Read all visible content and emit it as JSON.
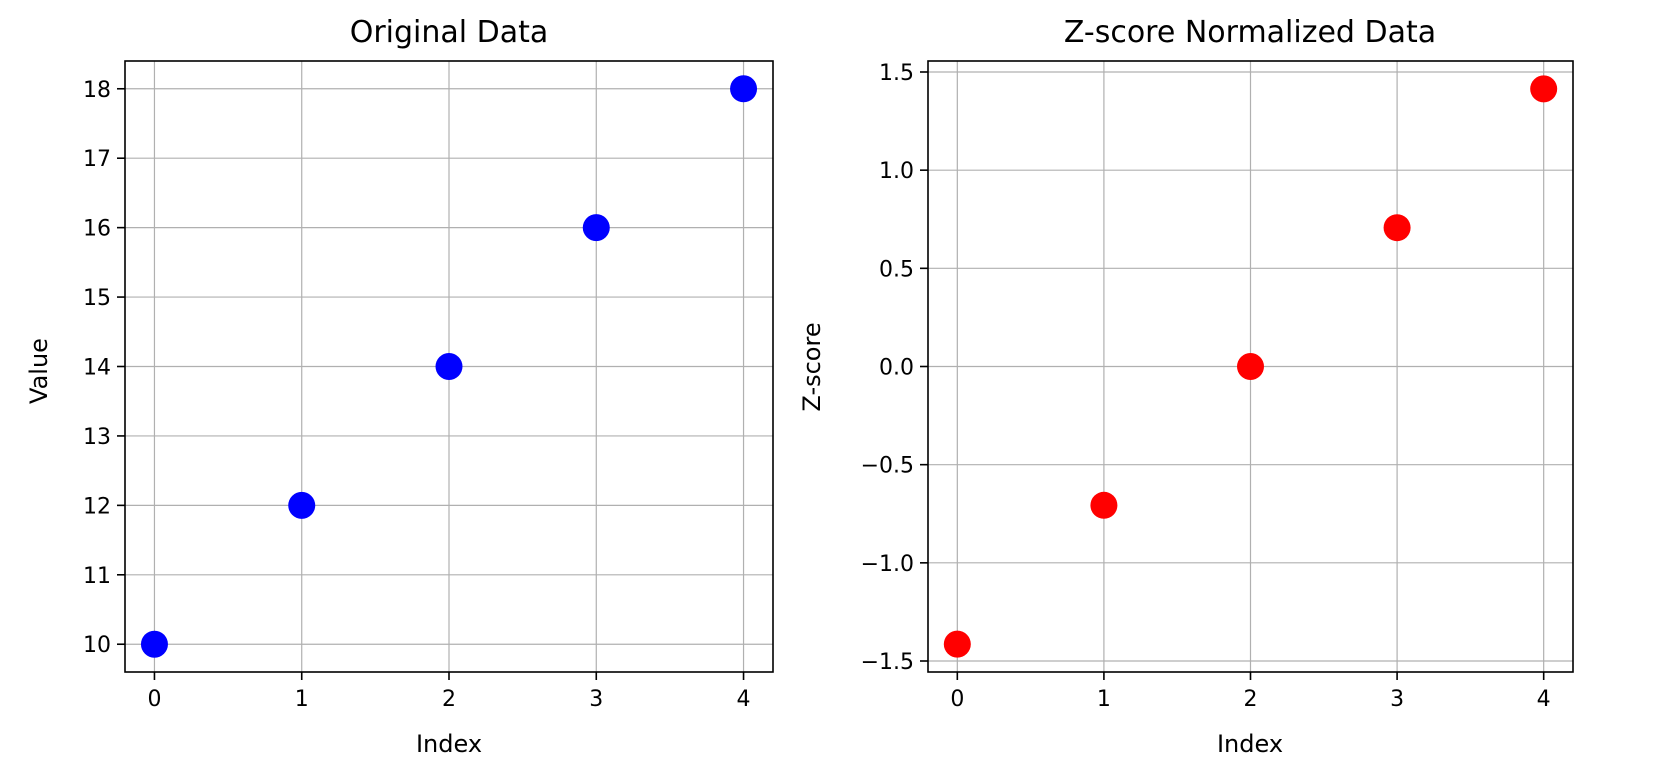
{
  "chart_data": [
    {
      "type": "scatter",
      "title": "Original Data",
      "xlabel": "Index",
      "ylabel": "Value",
      "x": [
        0,
        1,
        2,
        3,
        4
      ],
      "y": [
        10,
        12,
        14,
        16,
        18
      ],
      "xlim": [
        -0.2,
        4.2
      ],
      "ylim": [
        9.6,
        18.4
      ],
      "xticks": [
        0,
        1,
        2,
        3,
        4
      ],
      "yticks": [
        10,
        11,
        12,
        13,
        14,
        15,
        16,
        17,
        18
      ],
      "ytick_labels": [
        "10",
        "11",
        "12",
        "13",
        "14",
        "15",
        "16",
        "17",
        "18"
      ],
      "color": "#0000ff",
      "grid": true
    },
    {
      "type": "scatter",
      "title": "Z-score Normalized Data",
      "xlabel": "Index",
      "ylabel": "Z-score",
      "x": [
        0,
        1,
        2,
        3,
        4
      ],
      "y": [
        -1.414,
        -0.707,
        0.0,
        0.707,
        1.414
      ],
      "xlim": [
        -0.2,
        4.2
      ],
      "ylim": [
        -1.556,
        1.556
      ],
      "xticks": [
        0,
        1,
        2,
        3,
        4
      ],
      "yticks": [
        -1.5,
        -1.0,
        -0.5,
        0.0,
        0.5,
        1.0,
        1.5
      ],
      "ytick_labels": [
        "−1.5",
        "−1.0",
        "−0.5",
        "0.0",
        "0.5",
        "1.0",
        "1.5"
      ],
      "color": "#ff0000",
      "grid": true
    }
  ]
}
